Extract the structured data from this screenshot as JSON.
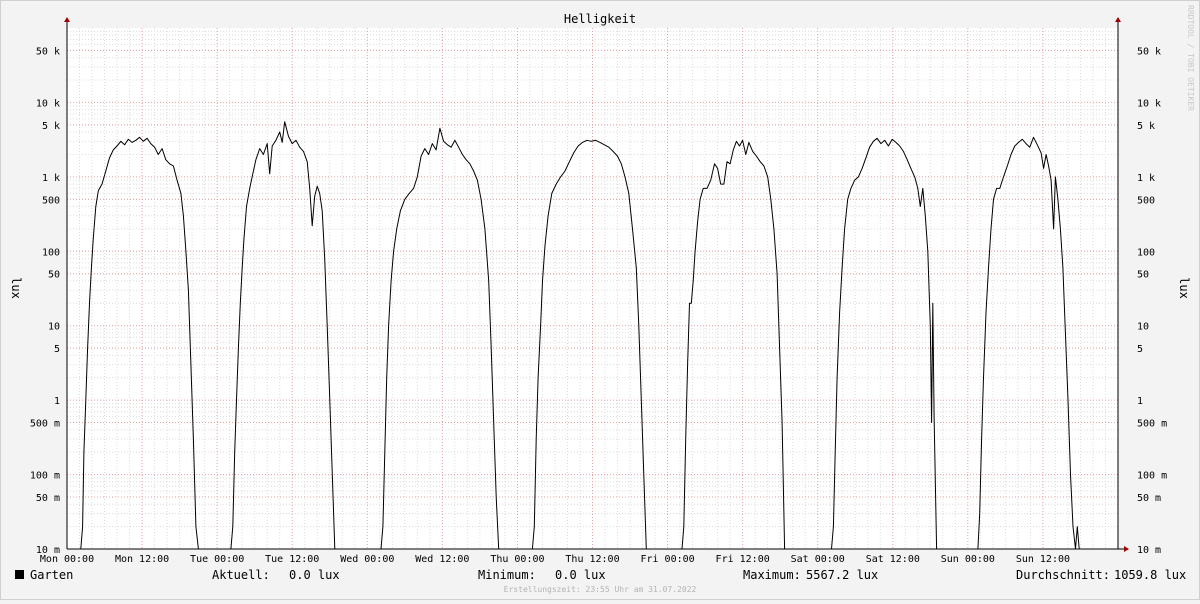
{
  "chart_data": {
    "type": "line",
    "title": "Helligkeit",
    "ylabel_left": "lux",
    "ylabel_right": "lux",
    "watermark": "RRDTOOL / TOBI OETIKER",
    "y_scale": "log",
    "ylim": [
      0.01,
      100000
    ],
    "y_ticks": [
      {
        "v": 0.01,
        "label": "10 m"
      },
      {
        "v": 0.05,
        "label": "50 m"
      },
      {
        "v": 0.1,
        "label": "100 m"
      },
      {
        "v": 0.5,
        "label": "500 m"
      },
      {
        "v": 1,
        "label": "1"
      },
      {
        "v": 5,
        "label": "5"
      },
      {
        "v": 10,
        "label": "10"
      },
      {
        "v": 50,
        "label": "50"
      },
      {
        "v": 100,
        "label": "100"
      },
      {
        "v": 500,
        "label": "500"
      },
      {
        "v": 1000,
        "label": "1 k"
      },
      {
        "v": 5000,
        "label": "5 k"
      },
      {
        "v": 10000,
        "label": "10 k"
      },
      {
        "v": 50000,
        "label": "50 k"
      }
    ],
    "x_unit": "hours",
    "xlim": [
      0,
      168
    ],
    "x_ticks": [
      {
        "h": 0,
        "label": "Mon 00:00"
      },
      {
        "h": 12,
        "label": "Mon 12:00"
      },
      {
        "h": 24,
        "label": "Tue 00:00"
      },
      {
        "h": 36,
        "label": "Tue 12:00"
      },
      {
        "h": 48,
        "label": "Wed 00:00"
      },
      {
        "h": 60,
        "label": "Wed 12:00"
      },
      {
        "h": 72,
        "label": "Thu 00:00"
      },
      {
        "h": 84,
        "label": "Thu 12:00"
      },
      {
        "h": 96,
        "label": "Fri 00:00"
      },
      {
        "h": 108,
        "label": "Fri 12:00"
      },
      {
        "h": 120,
        "label": "Sat 00:00"
      },
      {
        "h": 132,
        "label": "Sat 12:00"
      },
      {
        "h": 144,
        "label": "Sun 00:00"
      },
      {
        "h": 156,
        "label": "Sun 12:00"
      }
    ],
    "grid": true,
    "series": [
      {
        "name": "Garten",
        "color": "#000000",
        "points": [
          [
            0,
            0.01
          ],
          [
            2.2,
            0.01
          ],
          [
            2.5,
            0.02
          ],
          [
            2.7,
            0.2
          ],
          [
            3.0,
            1.0
          ],
          [
            3.3,
            5
          ],
          [
            3.6,
            20
          ],
          [
            3.9,
            60
          ],
          [
            4.2,
            150
          ],
          [
            4.6,
            400
          ],
          [
            5.0,
            650
          ],
          [
            5.6,
            800
          ],
          [
            6.2,
            1200
          ],
          [
            6.8,
            1800
          ],
          [
            7.4,
            2300
          ],
          [
            8.0,
            2600
          ],
          [
            8.6,
            3000
          ],
          [
            9.2,
            2700
          ],
          [
            9.8,
            3200
          ],
          [
            10.4,
            2900
          ],
          [
            11.0,
            3100
          ],
          [
            11.6,
            3400
          ],
          [
            12.2,
            3000
          ],
          [
            12.8,
            3300
          ],
          [
            13.4,
            2800
          ],
          [
            14.0,
            2500
          ],
          [
            14.6,
            2000
          ],
          [
            15.2,
            2400
          ],
          [
            15.8,
            1700
          ],
          [
            16.4,
            1500
          ],
          [
            17.0,
            1400
          ],
          [
            17.6,
            900
          ],
          [
            18.2,
            600
          ],
          [
            18.6,
            300
          ],
          [
            19.0,
            100
          ],
          [
            19.4,
            30
          ],
          [
            19.8,
            3
          ],
          [
            20.2,
            0.3
          ],
          [
            20.6,
            0.02
          ],
          [
            21.0,
            0.01
          ],
          [
            26.2,
            0.01
          ],
          [
            26.5,
            0.02
          ],
          [
            26.8,
            0.2
          ],
          [
            27.1,
            1
          ],
          [
            27.4,
            5
          ],
          [
            27.7,
            20
          ],
          [
            28.0,
            60
          ],
          [
            28.3,
            150
          ],
          [
            28.7,
            400
          ],
          [
            29.2,
            700
          ],
          [
            29.7,
            1100
          ],
          [
            30.2,
            1700
          ],
          [
            30.8,
            2400
          ],
          [
            31.4,
            2000
          ],
          [
            32.0,
            2800
          ],
          [
            32.4,
            1100
          ],
          [
            32.8,
            2600
          ],
          [
            33.4,
            3100
          ],
          [
            34.0,
            4000
          ],
          [
            34.4,
            2900
          ],
          [
            34.8,
            5500
          ],
          [
            35.4,
            3500
          ],
          [
            36.0,
            2800
          ],
          [
            36.6,
            3100
          ],
          [
            37.2,
            2500
          ],
          [
            37.8,
            2200
          ],
          [
            38.4,
            1600
          ],
          [
            38.8,
            700
          ],
          [
            39.2,
            220
          ],
          [
            39.6,
            550
          ],
          [
            40.0,
            750
          ],
          [
            40.4,
            600
          ],
          [
            40.8,
            350
          ],
          [
            41.2,
            80
          ],
          [
            41.6,
            10
          ],
          [
            42.0,
            1
          ],
          [
            42.4,
            0.1
          ],
          [
            42.8,
            0.01
          ],
          [
            37.8,
            0.01
          ],
          [
            38.2,
            0.01
          ],
          [
            42.8,
            0.01
          ],
          [
            50.2,
            0.01
          ],
          [
            50.5,
            0.02
          ],
          [
            50.8,
            0.2
          ],
          [
            51.1,
            2
          ],
          [
            51.4,
            10
          ],
          [
            51.8,
            40
          ],
          [
            52.2,
            100
          ],
          [
            52.7,
            200
          ],
          [
            53.3,
            350
          ],
          [
            54.0,
            500
          ],
          [
            54.7,
            600
          ],
          [
            55.4,
            700
          ],
          [
            56.0,
            1000
          ],
          [
            56.6,
            1900
          ],
          [
            57.2,
            2400
          ],
          [
            57.8,
            2000
          ],
          [
            58.4,
            2800
          ],
          [
            59.0,
            2300
          ],
          [
            59.6,
            4500
          ],
          [
            60.2,
            3000
          ],
          [
            60.8,
            2700
          ],
          [
            61.4,
            2500
          ],
          [
            62.0,
            3100
          ],
          [
            62.6,
            2500
          ],
          [
            63.2,
            2000
          ],
          [
            63.8,
            1700
          ],
          [
            64.4,
            1500
          ],
          [
            65.0,
            1200
          ],
          [
            65.6,
            900
          ],
          [
            66.2,
            500
          ],
          [
            66.8,
            200
          ],
          [
            67.4,
            40
          ],
          [
            67.8,
            5
          ],
          [
            68.2,
            0.5
          ],
          [
            68.6,
            0.05
          ],
          [
            69.0,
            0.01
          ],
          [
            74.4,
            0.01
          ],
          [
            74.7,
            0.02
          ],
          [
            75.0,
            0.3
          ],
          [
            75.3,
            2
          ],
          [
            75.7,
            10
          ],
          [
            76.0,
            40
          ],
          [
            76.4,
            120
          ],
          [
            76.9,
            300
          ],
          [
            77.5,
            600
          ],
          [
            78.2,
            800
          ],
          [
            78.9,
            1000
          ],
          [
            79.6,
            1200
          ],
          [
            80.3,
            1600
          ],
          [
            81.0,
            2100
          ],
          [
            81.7,
            2600
          ],
          [
            82.4,
            2900
          ],
          [
            83.1,
            3100
          ],
          [
            83.8,
            3000
          ],
          [
            84.5,
            3100
          ],
          [
            85.2,
            2900
          ],
          [
            85.9,
            2700
          ],
          [
            86.6,
            2500
          ],
          [
            87.3,
            2200
          ],
          [
            88.0,
            1900
          ],
          [
            88.6,
            1500
          ],
          [
            89.2,
            1000
          ],
          [
            89.8,
            600
          ],
          [
            90.4,
            200
          ],
          [
            91.0,
            60
          ],
          [
            91.4,
            10
          ],
          [
            91.8,
            1
          ],
          [
            92.2,
            0.1
          ],
          [
            92.6,
            0.01
          ],
          [
            98.3,
            0.01
          ],
          [
            98.6,
            0.02
          ],
          [
            98.9,
            0.3
          ],
          [
            99.2,
            3
          ],
          [
            99.5,
            20
          ],
          [
            99.8,
            20
          ],
          [
            100.1,
            40
          ],
          [
            100.4,
            100
          ],
          [
            100.8,
            250
          ],
          [
            101.2,
            500
          ],
          [
            101.7,
            700
          ],
          [
            102.3,
            700
          ],
          [
            102.9,
            900
          ],
          [
            103.5,
            1500
          ],
          [
            104.0,
            1300
          ],
          [
            104.5,
            800
          ],
          [
            105.0,
            800
          ],
          [
            105.5,
            1600
          ],
          [
            106.0,
            1500
          ],
          [
            106.5,
            2300
          ],
          [
            107.0,
            3000
          ],
          [
            107.5,
            2600
          ],
          [
            108.0,
            3100
          ],
          [
            108.5,
            2000
          ],
          [
            109.0,
            2900
          ],
          [
            109.6,
            2200
          ],
          [
            110.2,
            1900
          ],
          [
            110.8,
            1600
          ],
          [
            111.4,
            1400
          ],
          [
            112.0,
            1000
          ],
          [
            112.5,
            500
          ],
          [
            113.0,
            200
          ],
          [
            113.5,
            50
          ],
          [
            113.9,
            5
          ],
          [
            114.3,
            0.5
          ],
          [
            114.7,
            0.01
          ],
          [
            122.2,
            0.01
          ],
          [
            122.5,
            0.02
          ],
          [
            122.8,
            0.2
          ],
          [
            123.1,
            2
          ],
          [
            123.5,
            15
          ],
          [
            123.9,
            60
          ],
          [
            124.3,
            200
          ],
          [
            124.8,
            500
          ],
          [
            125.3,
            700
          ],
          [
            125.9,
            900
          ],
          [
            126.5,
            1000
          ],
          [
            127.1,
            1300
          ],
          [
            127.7,
            1800
          ],
          [
            128.3,
            2500
          ],
          [
            128.9,
            3000
          ],
          [
            129.5,
            3300
          ],
          [
            130.1,
            2800
          ],
          [
            130.7,
            3100
          ],
          [
            131.3,
            2600
          ],
          [
            131.9,
            3200
          ],
          [
            132.5,
            2900
          ],
          [
            133.1,
            2600
          ],
          [
            133.7,
            2200
          ],
          [
            134.3,
            1700
          ],
          [
            134.9,
            1300
          ],
          [
            135.5,
            1000
          ],
          [
            136.0,
            700
          ],
          [
            136.4,
            400
          ],
          [
            136.8,
            700
          ],
          [
            137.2,
            300
          ],
          [
            137.6,
            100
          ],
          [
            138.0,
            10
          ],
          [
            138.2,
            0.5
          ],
          [
            138.4,
            20
          ],
          [
            138.6,
            0.6
          ],
          [
            139.0,
            0.01
          ],
          [
            145.6,
            0.01
          ],
          [
            145.9,
            0.03
          ],
          [
            146.2,
            0.3
          ],
          [
            146.5,
            2
          ],
          [
            146.9,
            15
          ],
          [
            147.3,
            60
          ],
          [
            147.7,
            200
          ],
          [
            148.1,
            500
          ],
          [
            148.6,
            700
          ],
          [
            149.1,
            700
          ],
          [
            149.7,
            1000
          ],
          [
            150.3,
            1400
          ],
          [
            150.9,
            2000
          ],
          [
            151.5,
            2600
          ],
          [
            152.1,
            2900
          ],
          [
            152.7,
            3200
          ],
          [
            153.3,
            2800
          ],
          [
            153.9,
            2500
          ],
          [
            154.5,
            3400
          ],
          [
            155.1,
            2700
          ],
          [
            155.7,
            2100
          ],
          [
            156.1,
            1300
          ],
          [
            156.5,
            2000
          ],
          [
            156.9,
            1400
          ],
          [
            157.3,
            900
          ],
          [
            157.7,
            200
          ],
          [
            158.0,
            1000
          ],
          [
            158.4,
            500
          ],
          [
            158.8,
            200
          ],
          [
            159.2,
            60
          ],
          [
            159.6,
            8
          ],
          [
            160.0,
            1
          ],
          [
            160.4,
            0.1
          ],
          [
            160.8,
            0.02
          ],
          [
            161.2,
            0.01
          ],
          [
            161.5,
            0.02
          ],
          [
            161.8,
            0.01
          ]
        ]
      }
    ],
    "legend": [
      {
        "swatch": "#000000",
        "label": "Garten"
      }
    ],
    "stats": {
      "current_label": "Aktuell:",
      "current_value": "0.0 lux",
      "min_label": "Minimum:",
      "min_value": "0.0 lux",
      "max_label": "Maximum:",
      "max_value": "5567.2 lux",
      "avg_label": "Durchschnitt:",
      "avg_value": "1059.8 lux"
    },
    "footer": "Erstellungszeit: 23:55 Uhr am 31.07.2022"
  }
}
